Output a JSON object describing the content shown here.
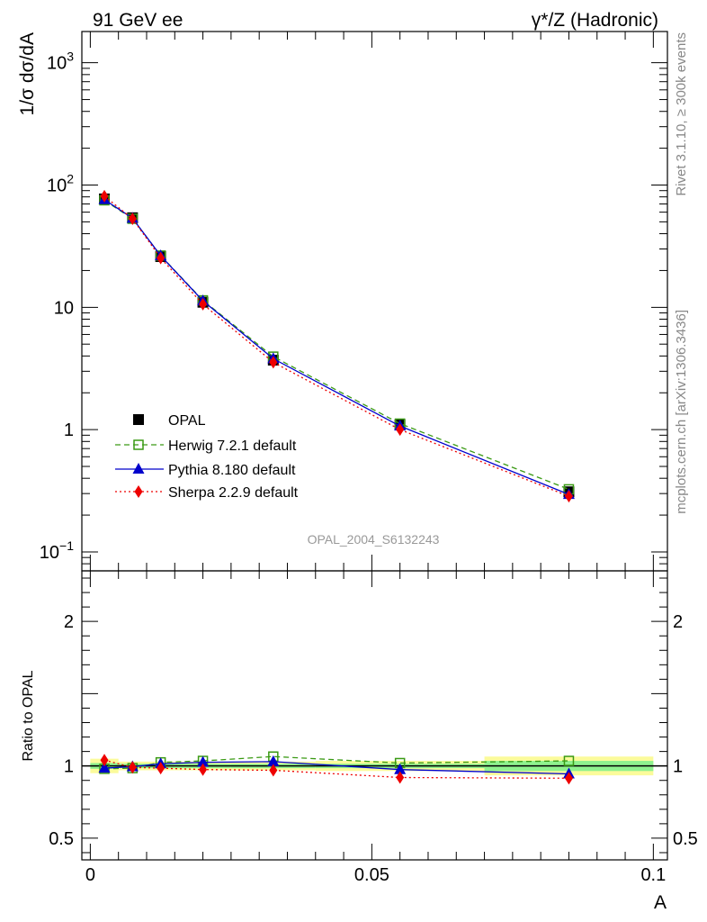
{
  "header": {
    "left": "91 GeV ee",
    "right_prefix": "γ*/Z",
    "right_suffix": " (Hadronic)"
  },
  "side_text": {
    "rivet": "Rivet 3.1.10, ≥ 300k events",
    "mcplots": "mcplots.cern.ch [arXiv:1306.3436]"
  },
  "watermark": "OPAL_2004_S6132243",
  "chart_data": [
    {
      "type": "line",
      "ylabel": "1/σ dσ/dA",
      "yscale": "log",
      "ylim": [
        0.07,
        1800
      ],
      "xlim": [
        -0.0015,
        0.1025
      ],
      "yticks": [
        {
          "value": 0.1,
          "label": "10",
          "sup": "−1"
        },
        {
          "value": 1,
          "label": "1",
          "sup": ""
        },
        {
          "value": 10,
          "label": "10",
          "sup": ""
        },
        {
          "value": 100,
          "label": "10",
          "sup": "2"
        },
        {
          "value": 1000,
          "label": "10",
          "sup": "3"
        }
      ],
      "legend_position": "lower-left",
      "x": [
        0.0025,
        0.0075,
        0.0125,
        0.02,
        0.0325,
        0.055,
        0.085
      ],
      "series": [
        {
          "name": "OPAL",
          "color": "#000000",
          "marker": "square",
          "style": "none",
          "values": [
            77,
            54,
            26,
            11,
            3.7,
            1.1,
            0.31
          ]
        },
        {
          "name": "Herwig 7.2.1 default",
          "color": "#3a9a14",
          "marker": "open-square",
          "style": "dashed",
          "values": [
            75,
            53,
            26.5,
            11.4,
            3.95,
            1.12,
            0.325
          ]
        },
        {
          "name": "Pythia 8.180 default",
          "color": "#0000cc",
          "marker": "triangle",
          "style": "solid",
          "values": [
            76,
            53.5,
            26.4,
            11.3,
            3.8,
            1.07,
            0.295
          ]
        },
        {
          "name": "Sherpa 2.2.9 default",
          "color": "#ee0000",
          "marker": "diamond",
          "style": "dotted",
          "values": [
            81,
            53,
            25.3,
            10.6,
            3.55,
            1.0,
            0.285
          ]
        }
      ]
    },
    {
      "type": "line",
      "xlabel": "A",
      "ylabel": "Ratio to OPAL",
      "ylim": [
        0.35,
        2.35
      ],
      "xlim": [
        -0.0015,
        0.1025
      ],
      "xticks": [
        {
          "value": 0,
          "label": "0"
        },
        {
          "value": 0.05,
          "label": "0.05"
        },
        {
          "value": 0.1,
          "label": "0.1"
        }
      ],
      "yticks": [
        {
          "value": 0.5,
          "label": "0.5"
        },
        {
          "value": 1,
          "label": "1"
        },
        {
          "value": 2,
          "label": "2"
        }
      ],
      "x": [
        0.0025,
        0.0075,
        0.0125,
        0.02,
        0.0325,
        0.055,
        0.085
      ],
      "bands": [
        {
          "x": [
            0.0,
            0.005,
            0.01,
            0.015,
            0.025,
            0.04,
            0.07,
            0.1
          ],
          "yellow": [
            0.05,
            0.03,
            0.03,
            0.03,
            0.03,
            0.035,
            0.065
          ],
          "green": [
            0.02,
            0.015,
            0.015,
            0.015,
            0.015,
            0.015,
            0.035
          ]
        }
      ],
      "series": [
        {
          "name": "Herwig 7.2.1 default",
          "color": "#3a9a14",
          "marker": "open-square",
          "style": "dashed",
          "values": [
            0.98,
            0.985,
            1.025,
            1.035,
            1.065,
            1.02,
            1.035
          ]
        },
        {
          "name": "Pythia 8.180 default",
          "color": "#0000cc",
          "marker": "triangle",
          "style": "solid",
          "values": [
            0.985,
            0.995,
            1.015,
            1.025,
            1.03,
            0.975,
            0.945
          ]
        },
        {
          "name": "Sherpa 2.2.9 default",
          "color": "#ee0000",
          "marker": "diamond",
          "style": "dotted",
          "values": [
            1.04,
            0.99,
            0.985,
            0.975,
            0.97,
            0.92,
            0.915
          ]
        }
      ]
    }
  ]
}
